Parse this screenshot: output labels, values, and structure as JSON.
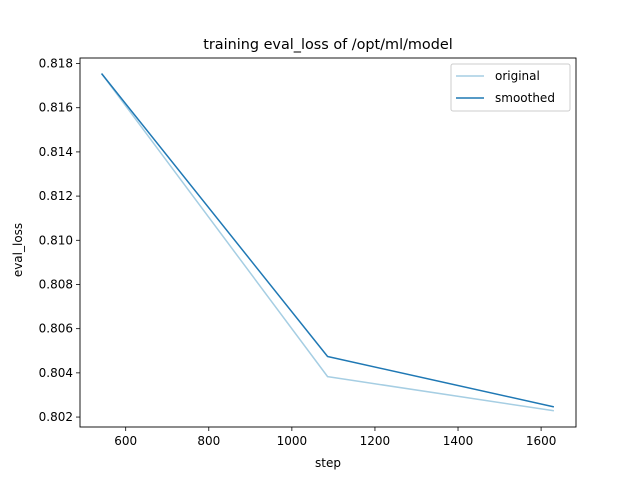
{
  "chart_data": {
    "type": "line",
    "title": "training eval_loss of /opt/ml/model",
    "xlabel": "step",
    "ylabel": "eval_loss",
    "xlim": [
      490,
      1684
    ],
    "ylim": [
      0.80155,
      0.81825
    ],
    "xticks": [
      600,
      800,
      1000,
      1200,
      1400,
      1600
    ],
    "yticks": [
      0.802,
      0.804,
      0.806,
      0.808,
      0.81,
      0.812,
      0.814,
      0.816,
      0.818
    ],
    "xtick_labels": [
      "600",
      "800",
      "1000",
      "1200",
      "1400",
      "1600"
    ],
    "ytick_labels": [
      "0.802",
      "0.804",
      "0.806",
      "0.808",
      "0.810",
      "0.812",
      "0.814",
      "0.816",
      "0.818"
    ],
    "grid": false,
    "legend_position": "top-right",
    "series": [
      {
        "name": "original",
        "color": "#a6cee3",
        "x": [
          543,
          1086,
          1629
        ],
        "y": [
          0.81752,
          0.80383,
          0.80229
        ]
      },
      {
        "name": "smoothed",
        "color": "#1f78b4",
        "x": [
          543,
          1086,
          1629
        ],
        "y": [
          0.81752,
          0.80474,
          0.80247
        ]
      }
    ]
  }
}
